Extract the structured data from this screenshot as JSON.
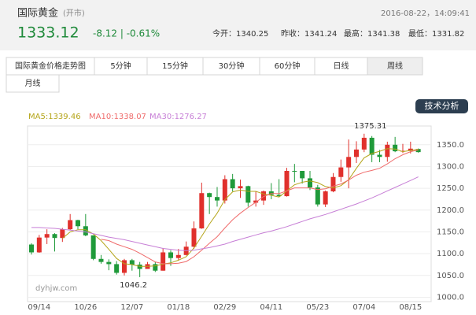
{
  "header": {
    "title": "国际黄金",
    "status": "(开市)",
    "datetime": "2016-08-22，14:09:41",
    "price": "1333.12",
    "change": "-8.12 | -0.61%",
    "stats": [
      "今开：1340.25",
      "昨收：1341.24",
      "最高：1341.38",
      "最低：1331.82"
    ]
  },
  "tabs": [
    "国际黄金价格走势图",
    "5分钟",
    "15分钟",
    "30分钟",
    "60分钟",
    "日线",
    "周线",
    "月线"
  ],
  "button": "技术分析",
  "chart_data": {
    "type": "candlestick",
    "categories": [
      null,
      "09/14",
      null,
      null,
      null,
      null,
      null,
      "10/26",
      null,
      null,
      null,
      null,
      null,
      "12/07",
      null,
      null,
      null,
      null,
      null,
      "01/18",
      null,
      null,
      null,
      null,
      null,
      "02/29",
      null,
      null,
      null,
      null,
      null,
      "04/11",
      null,
      null,
      null,
      null,
      null,
      "05/23",
      null,
      null,
      null,
      null,
      null,
      "07/04",
      null,
      null,
      null,
      null,
      null,
      "08/15",
      null
    ],
    "open": [
      1121,
      1103,
      1137,
      1145,
      1136,
      1156,
      1177,
      1163,
      1142,
      1088,
      1081,
      1076,
      1056,
      1085,
      1075,
      1065,
      1076,
      1061,
      1103,
      1090,
      1097,
      1116,
      1158,
      1239,
      1230,
      1222,
      1271,
      1250,
      1255,
      1217,
      1222,
      1243,
      1235,
      1232,
      1290,
      1290,
      1273,
      1252,
      1213,
      1243,
      1276,
      1298,
      1322,
      1339,
      1366,
      1327,
      1322,
      1350,
      1335,
      1336,
      1340.25
    ],
    "high": [
      1124,
      1143,
      1156,
      1147,
      1159,
      1191,
      1178,
      1191,
      1142,
      1097,
      1087,
      1083,
      1088,
      1088,
      1081,
      1081,
      1082,
      1113,
      1108,
      1111,
      1128,
      1174,
      1263,
      1240,
      1253,
      1280,
      1283,
      1270,
      1256,
      1243,
      1245,
      1262,
      1271,
      1297,
      1306,
      1290,
      1290,
      1258,
      1245,
      1285,
      1316,
      1362,
      1358,
      1375.31,
      1370,
      1338,
      1357,
      1368,
      1352,
      1357,
      1341.38
    ],
    "low": [
      1098,
      1102,
      1122,
      1105,
      1127,
      1154,
      1156,
      1140,
      1085,
      1077,
      1062,
      1052,
      1050,
      1061,
      1046.2,
      1065,
      1058,
      1061,
      1072,
      1084,
      1096,
      1111,
      1157,
      1191,
      1208,
      1215,
      1243,
      1228,
      1208,
      1208,
      1212,
      1225,
      1230,
      1231,
      1264,
      1261,
      1246,
      1208,
      1207,
      1241,
      1265,
      1250,
      1308,
      1333,
      1310,
      1310,
      1311,
      1333,
      1331,
      1330,
      1331.82
    ],
    "close": [
      1103,
      1137,
      1145,
      1136,
      1156,
      1177,
      1163,
      1142,
      1088,
      1081,
      1076,
      1056,
      1085,
      1075,
      1065,
      1076,
      1061,
      1103,
      1090,
      1097,
      1116,
      1158,
      1239,
      1230,
      1222,
      1271,
      1250,
      1255,
      1217,
      1222,
      1243,
      1235,
      1232,
      1290,
      1289,
      1273,
      1252,
      1213,
      1243,
      1276,
      1298,
      1322,
      1339,
      1366,
      1327,
      1322,
      1350,
      1335,
      1336,
      1341,
      1333.12
    ],
    "up_color": "#e0302c",
    "down_color": "#1f9a3a",
    "series": [
      {
        "name": "MA5:1339.46",
        "color": "#b5a51a",
        "values": [
          null,
          null,
          null,
          null,
          1135,
          1150,
          1155,
          1155,
          1145,
          1130,
          1110,
          1089,
          1077,
          1075,
          1071,
          1071,
          1072,
          1076,
          1079,
          1085,
          1093,
          1113,
          1140,
          1168,
          1193,
          1224,
          1242,
          1246,
          1243,
          1243,
          1237,
          1234,
          1230,
          1244,
          1258,
          1264,
          1267,
          1263,
          1254,
          1251,
          1256,
          1270,
          1296,
          1320,
          1330,
          1335,
          1341,
          1340,
          1334,
          1337,
          1339.46
        ]
      },
      {
        "name": "MA10:1338.07",
        "color": "#ef6b6b",
        "values": [
          null,
          null,
          null,
          null,
          null,
          null,
          null,
          null,
          null,
          1133,
          1130,
          1122,
          1116,
          1110,
          1101,
          1091,
          1081,
          1077,
          1077,
          1078,
          1082,
          1093,
          1108,
          1124,
          1139,
          1159,
          1178,
          1193,
          1206,
          1218,
          1231,
          1238,
          1238,
          1244,
          1251,
          1251,
          1251,
          1247,
          1249,
          1255,
          1260,
          1269,
          1280,
          1287,
          1291,
          1296,
          1306,
          1318,
          1327,
          1334,
          1338.07
        ]
      },
      {
        "name": "MA30:1276.27",
        "color": "#c77fd6",
        "values": [
          1160,
          1160,
          1159,
          1158,
          1156,
          1154,
          1152,
          1150,
          1146,
          1142,
          1138,
          1135,
          1132,
          1128,
          1124,
          1120,
          1116,
          1112,
          1110,
          1108,
          1107,
          1108,
          1111,
          1114,
          1118,
          1122,
          1128,
          1133,
          1138,
          1143,
          1148,
          1152,
          1157,
          1162,
          1168,
          1174,
          1180,
          1185,
          1190,
          1196,
          1202,
          1208,
          1214,
          1221,
          1228,
          1236,
          1244,
          1252,
          1260,
          1268,
          1276.27
        ]
      }
    ],
    "annotations": [
      1375.31,
      1046.2
    ],
    "watermark": "dyhjw.com",
    "ylim": [
      990,
      1393
    ],
    "yticks": [
      {
        "value": 1000,
        "label": "1000.0"
      },
      {
        "value": 1050,
        "label": "1050.0"
      },
      {
        "value": 1100,
        "label": "1100.0"
      },
      {
        "value": 1150,
        "label": "1150.0"
      },
      {
        "value": 1200,
        "label": "1200.0"
      },
      {
        "value": 1250,
        "label": "1250.0"
      },
      {
        "value": 1300,
        "label": "1300.0"
      },
      {
        "value": 1350,
        "label": "1350.0"
      }
    ],
    "grid": true
  }
}
